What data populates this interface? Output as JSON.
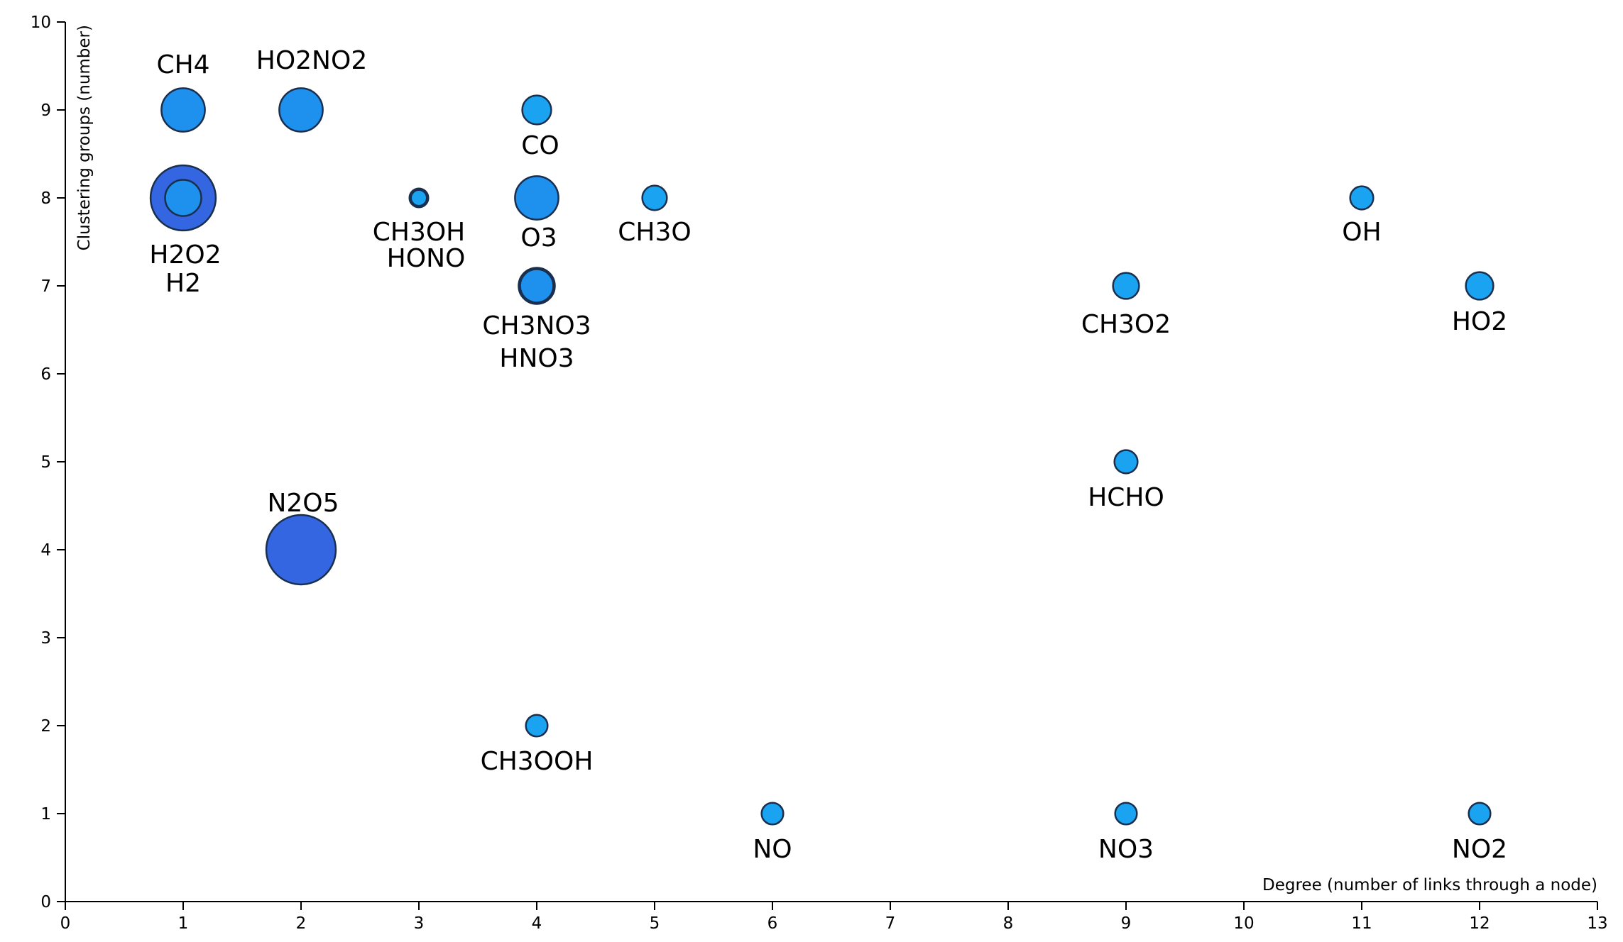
{
  "chart_data": {
    "type": "scatter",
    "xlabel": "Degree (number of links through a node)",
    "ylabel": "Clustering groups (number)",
    "xlim": [
      0,
      13
    ],
    "ylim": [
      0,
      10
    ],
    "x_ticks": [
      "0",
      "1",
      "2",
      "3",
      "4",
      "5",
      "6",
      "7",
      "8",
      "9",
      "10",
      "11",
      "12",
      "13"
    ],
    "y_ticks": [
      "0",
      "1",
      "2",
      "3",
      "4",
      "5",
      "6",
      "7",
      "8",
      "9",
      "10"
    ],
    "grid": false,
    "legend": "none",
    "colors": {
      "large": "#3366e0",
      "medium": "#1e90ee",
      "small": "#1aa3f0",
      "outline": "#1a2f4d"
    },
    "points": [
      {
        "label": "CH4",
        "x": 1,
        "y": 9,
        "size": 3,
        "color": "medium"
      },
      {
        "label": "HO2NO2",
        "x": 2,
        "y": 9,
        "size": 3,
        "color": "medium"
      },
      {
        "label": "CO",
        "x": 4,
        "y": 9,
        "size": 2,
        "color": "small"
      },
      {
        "label": "H2O2",
        "x": 1,
        "y": 8,
        "size": 4.5,
        "color": "large"
      },
      {
        "label": "H2",
        "x": 1,
        "y": 8,
        "size": 2.5,
        "color": "medium"
      },
      {
        "label": "CH3OH",
        "x": 3,
        "y": 8,
        "size": 1.3,
        "color": "small"
      },
      {
        "label": "HONO",
        "x": 3,
        "y": 8,
        "size": 1.1,
        "color": "small"
      },
      {
        "label": "O3",
        "x": 4,
        "y": 8,
        "size": 3,
        "color": "medium"
      },
      {
        "label": "CH3O",
        "x": 5,
        "y": 8,
        "size": 1.7,
        "color": "small"
      },
      {
        "label": "OH",
        "x": 11,
        "y": 8,
        "size": 1.6,
        "color": "small"
      },
      {
        "label": "CH3NO3",
        "x": 4,
        "y": 7,
        "size": 2.5,
        "color": "medium"
      },
      {
        "label": "HNO3",
        "x": 4,
        "y": 7,
        "size": 2.3,
        "color": "medium"
      },
      {
        "label": "CH3O2",
        "x": 9,
        "y": 7,
        "size": 1.8,
        "color": "small"
      },
      {
        "label": "HO2",
        "x": 12,
        "y": 7,
        "size": 1.9,
        "color": "small"
      },
      {
        "label": "HCHO",
        "x": 9,
        "y": 5,
        "size": 1.6,
        "color": "small"
      },
      {
        "label": "N2O5",
        "x": 2,
        "y": 4,
        "size": 4.8,
        "color": "large"
      },
      {
        "label": "CH3OOH",
        "x": 4,
        "y": 2,
        "size": 1.5,
        "color": "small"
      },
      {
        "label": "NO",
        "x": 6,
        "y": 1,
        "size": 1.5,
        "color": "small"
      },
      {
        "label": "NO3",
        "x": 9,
        "y": 1,
        "size": 1.5,
        "color": "small"
      },
      {
        "label": "NO2",
        "x": 12,
        "y": 1,
        "size": 1.5,
        "color": "small"
      }
    ]
  }
}
